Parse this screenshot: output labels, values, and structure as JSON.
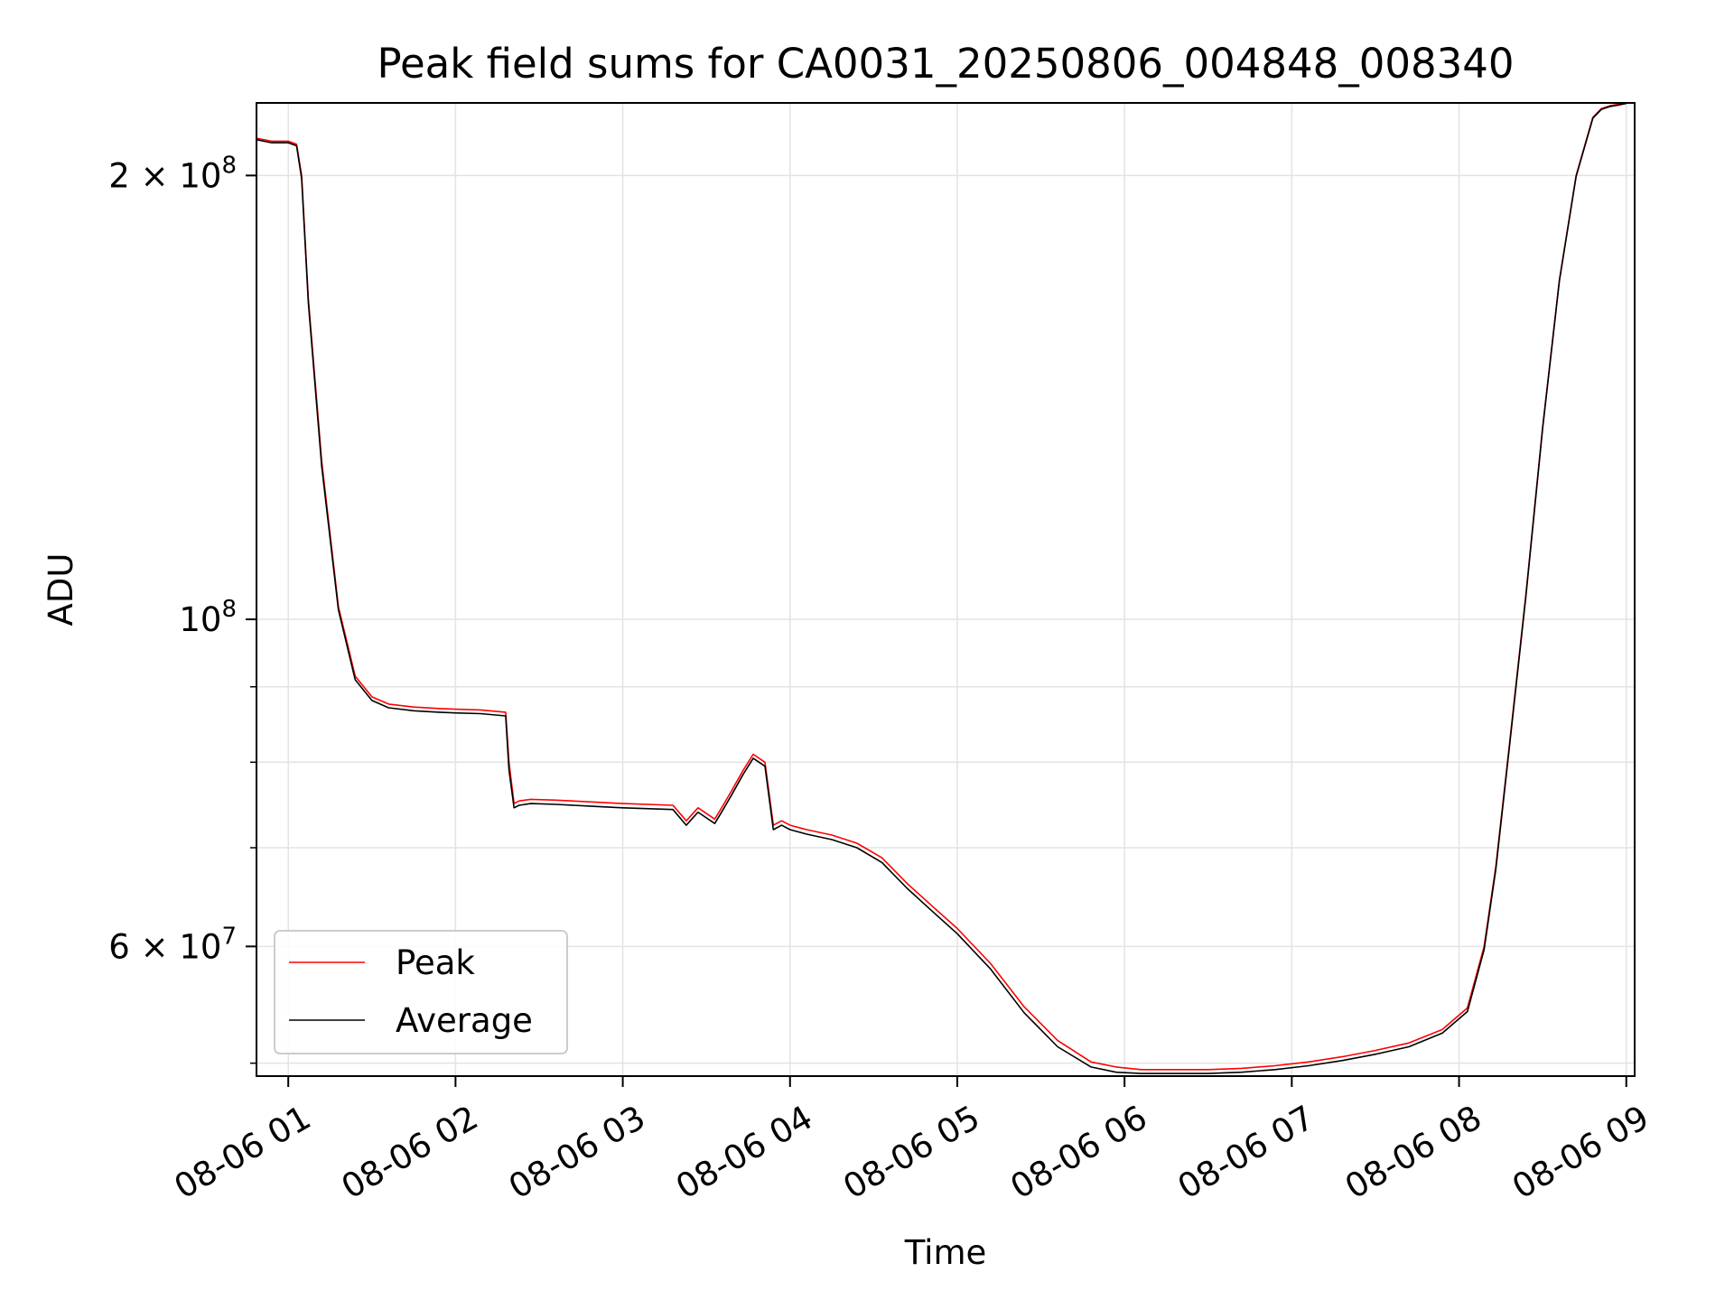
{
  "chart_data": {
    "type": "line",
    "title": "Peak field sums for CA0031_20250806_004848_008340",
    "xlabel": "Time",
    "ylabel": "ADU",
    "y_scale": "log",
    "x_unit": "hours (2025-08-06)",
    "xlim": [
      0.81,
      9.05
    ],
    "ylim": [
      49000000,
      224000000
    ],
    "x_ticks": [
      {
        "value": 1,
        "label": "08-06 01"
      },
      {
        "value": 2,
        "label": "08-06 02"
      },
      {
        "value": 3,
        "label": "08-06 03"
      },
      {
        "value": 4,
        "label": "08-06 04"
      },
      {
        "value": 5,
        "label": "08-06 05"
      },
      {
        "value": 6,
        "label": "08-06 06"
      },
      {
        "value": 7,
        "label": "08-06 07"
      },
      {
        "value": 8,
        "label": "08-06 08"
      },
      {
        "value": 9,
        "label": "08-06 09"
      }
    ],
    "y_major_ticks": [
      {
        "value": 60000000,
        "label": "6 × 10^7",
        "mantissa": "6",
        "exponent": "7"
      },
      {
        "value": 100000000,
        "label": "10^8",
        "mantissa": "",
        "exponent": "8"
      },
      {
        "value": 200000000,
        "label": "2 × 10^8",
        "mantissa": "2",
        "exponent": "8"
      }
    ],
    "y_minor_ticks": [
      50000000,
      70000000,
      80000000,
      90000000
    ],
    "grid": true,
    "legend_position": "lower-left",
    "colors": {
      "peak": "#ff0000",
      "average": "#000000"
    },
    "series": [
      {
        "name": "Peak",
        "color": "#ff0000",
        "x": [
          0.81,
          0.9,
          1.0,
          1.05,
          1.08,
          1.12,
          1.2,
          1.3,
          1.4,
          1.5,
          1.6,
          1.75,
          1.9,
          2.0,
          2.15,
          2.3,
          2.32,
          2.35,
          2.38,
          2.45,
          2.6,
          2.8,
          3.0,
          3.3,
          3.38,
          3.45,
          3.55,
          3.6,
          3.65,
          3.72,
          3.78,
          3.85,
          3.9,
          3.95,
          4.0,
          4.1,
          4.25,
          4.4,
          4.55,
          4.7,
          4.85,
          5.0,
          5.2,
          5.4,
          5.6,
          5.8,
          5.95,
          6.1,
          6.3,
          6.5,
          6.7,
          6.9,
          7.1,
          7.3,
          7.5,
          7.7,
          7.9,
          8.05,
          8.15,
          8.22,
          8.3,
          8.4,
          8.5,
          8.6,
          8.7,
          8.8,
          8.85,
          8.9,
          8.95,
          9.0
        ],
        "values": [
          212000000,
          211000000,
          211000000,
          210000000,
          200000000,
          165000000,
          128000000,
          102000000,
          91500000,
          88600000,
          87600000,
          87200000,
          87000000,
          86900000,
          86800000,
          86500000,
          80000000,
          75000000,
          75300000,
          75500000,
          75400000,
          75200000,
          75000000,
          74800000,
          73000000,
          74500000,
          73200000,
          74800000,
          76500000,
          79000000,
          81000000,
          80000000,
          72500000,
          73000000,
          72500000,
          72000000,
          71400000,
          70500000,
          68900000,
          66200000,
          63900000,
          61700000,
          58400000,
          54600000,
          51800000,
          50100000,
          49700000,
          49500000,
          49500000,
          49500000,
          49600000,
          49800000,
          50100000,
          50500000,
          51000000,
          51600000,
          52700000,
          54500000,
          60000000,
          68000000,
          82000000,
          104000000,
          135000000,
          170000000,
          200000000,
          219000000,
          222000000,
          223000000,
          223500000,
          224000000
        ]
      },
      {
        "name": "Average",
        "color": "#000000",
        "x": [
          0.81,
          0.9,
          1.0,
          1.05,
          1.08,
          1.12,
          1.2,
          1.3,
          1.4,
          1.5,
          1.6,
          1.75,
          1.9,
          2.0,
          2.15,
          2.3,
          2.32,
          2.35,
          2.38,
          2.45,
          2.6,
          2.8,
          3.0,
          3.3,
          3.38,
          3.45,
          3.55,
          3.6,
          3.65,
          3.72,
          3.78,
          3.85,
          3.9,
          3.95,
          4.0,
          4.1,
          4.25,
          4.4,
          4.55,
          4.7,
          4.85,
          5.0,
          5.2,
          5.4,
          5.6,
          5.8,
          5.95,
          6.1,
          6.3,
          6.5,
          6.7,
          6.9,
          7.1,
          7.3,
          7.5,
          7.7,
          7.9,
          8.05,
          8.15,
          8.22,
          8.3,
          8.4,
          8.5,
          8.6,
          8.7,
          8.8,
          8.85,
          8.9,
          8.95,
          9.0
        ],
        "values": [
          211500000,
          210500000,
          210500000,
          209500000,
          199000000,
          164000000,
          127000000,
          101500000,
          91000000,
          88100000,
          87100000,
          86700000,
          86500000,
          86400000,
          86300000,
          86000000,
          79000000,
          74500000,
          74800000,
          75000000,
          74900000,
          74700000,
          74500000,
          74300000,
          72500000,
          74000000,
          72700000,
          74300000,
          76000000,
          78500000,
          80500000,
          79500000,
          72000000,
          72500000,
          72000000,
          71500000,
          70900000,
          70000000,
          68400000,
          65700000,
          63400000,
          61200000,
          57900000,
          54100000,
          51300000,
          49700000,
          49300000,
          49200000,
          49200000,
          49200000,
          49300000,
          49500000,
          49800000,
          50200000,
          50700000,
          51300000,
          52400000,
          54200000,
          59700000,
          67700000,
          81700000,
          103700000,
          134700000,
          169700000,
          199700000,
          218700000,
          221700000,
          222700000,
          223200000,
          223800000
        ]
      }
    ]
  }
}
